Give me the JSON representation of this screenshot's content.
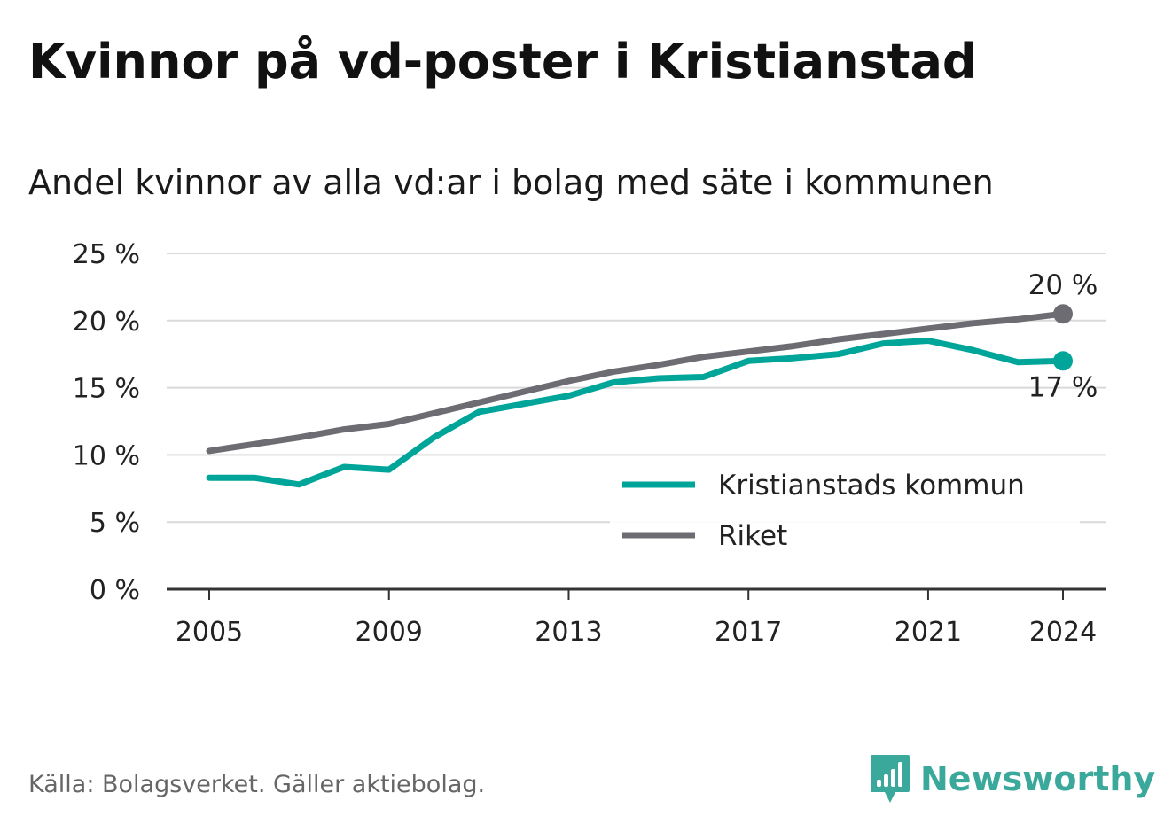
{
  "title": "Kvinnor på vd-poster i Kristianstad",
  "subtitle": "Andel kvinnor av alla vd:ar i bolag med säte i kommunen",
  "source": "Källa: Bolagsverket. Gäller aktiebolag.",
  "brand": {
    "name": "Newsworthy",
    "icon": "newsworthy-logo-icon",
    "color": "#3aa89b"
  },
  "colors": {
    "kommun": "#00a59a",
    "riket": "#6d6c73",
    "grid": "#d9d9d9",
    "axis": "#333333"
  },
  "chart_data": {
    "type": "line",
    "x": [
      2005,
      2006,
      2007,
      2008,
      2009,
      2010,
      2011,
      2012,
      2013,
      2014,
      2015,
      2016,
      2017,
      2018,
      2019,
      2020,
      2021,
      2022,
      2023,
      2024
    ],
    "xticks": [
      2005,
      2009,
      2013,
      2017,
      2021,
      2024
    ],
    "xtick_labels": [
      "2005",
      "2009",
      "2013",
      "2017",
      "2021",
      "2024"
    ],
    "ylim": [
      0,
      25
    ],
    "yticks": [
      0,
      5,
      10,
      15,
      20,
      25
    ],
    "ytick_labels": [
      "0 %",
      "5 %",
      "10 %",
      "15 %",
      "20 %",
      "25 %"
    ],
    "grid": true,
    "legend_position": "right",
    "series": [
      {
        "name": "Kristianstads kommun",
        "color": "#00a59a",
        "values": [
          8.3,
          8.3,
          7.8,
          9.1,
          8.9,
          11.3,
          13.2,
          13.8,
          14.4,
          15.4,
          15.7,
          15.8,
          17.0,
          17.2,
          17.5,
          18.3,
          18.5,
          17.8,
          16.9,
          17.0
        ],
        "end_label": "17 %"
      },
      {
        "name": "Riket",
        "color": "#6d6c73",
        "values": [
          10.3,
          10.8,
          11.3,
          11.9,
          12.3,
          13.1,
          13.9,
          14.7,
          15.5,
          16.2,
          16.7,
          17.3,
          17.7,
          18.1,
          18.6,
          19.0,
          19.4,
          19.8,
          20.1,
          20.5
        ],
        "end_label": "20 %"
      }
    ]
  }
}
